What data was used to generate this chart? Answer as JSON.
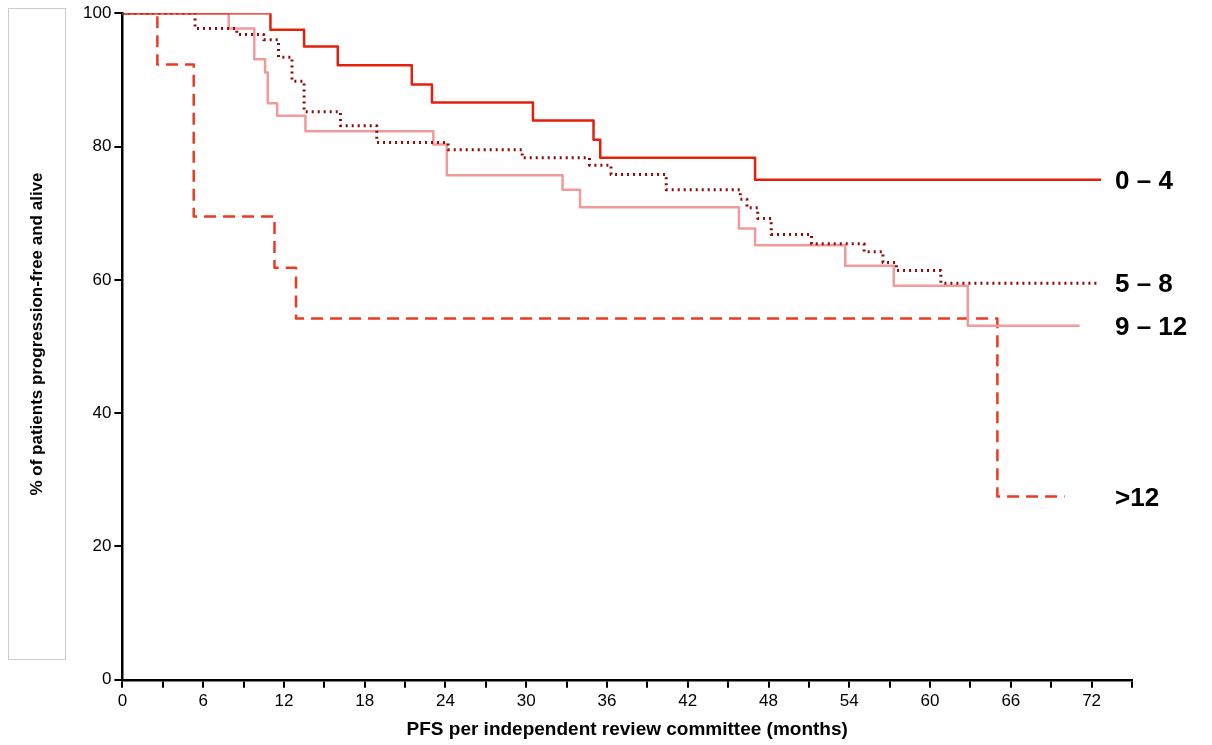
{
  "chart_data": {
    "type": "step",
    "xlabel": "PFS per independent review committee (months)",
    "ylabel": "% of patients progression-free and alive",
    "xlim": [
      0,
      75
    ],
    "xticks": [
      0,
      {
        "value": 3,
        "label": null
      },
      6,
      {
        "value": 9,
        "label": null
      },
      12,
      {
        "value": 15,
        "label": null
      },
      18,
      {
        "value": 21,
        "label": null
      },
      24,
      {
        "value": 27,
        "label": null
      },
      30,
      {
        "value": 33,
        "label": null
      },
      36,
      {
        "value": 39,
        "label": null
      },
      42,
      {
        "value": 45,
        "label": null
      },
      48,
      {
        "value": 51,
        "label": null
      },
      54,
      {
        "value": 57,
        "label": null
      },
      60,
      {
        "value": 63,
        "label": null
      },
      66,
      {
        "value": 69,
        "label": null
      },
      72,
      {
        "value": 75,
        "label": null
      }
    ],
    "ylim": [
      0,
      100
    ],
    "yticks": [
      0,
      20,
      40,
      60,
      80,
      100
    ],
    "grid": false,
    "legend": false,
    "marker": "none",
    "series": [
      {
        "name": "0 – 4",
        "color": "#e3200c",
        "line_style": "solid",
        "x": [
          0,
          11,
          13.5,
          16,
          21.5,
          23,
          30.5,
          35,
          35.5,
          47,
          72.7
        ],
        "values": [
          100,
          97.5,
          95,
          92.2,
          89.3,
          86.6,
          83.9,
          81,
          78.3,
          75,
          75
        ]
      },
      {
        "name": "5 – 8",
        "color": "#8b0a0a",
        "line_style": "dotted",
        "x": [
          0,
          5.4,
          8.5,
          10.5,
          11.6,
          12.6,
          13.5,
          16.2,
          18.9,
          24.2,
          29.7,
          34.7,
          36.3,
          40.4,
          45.9,
          46.4,
          47.2,
          48.2,
          51.2,
          55.1,
          56.5,
          57.5,
          60.8,
          72.6
        ],
        "values": [
          100,
          97.7,
          96.8,
          96,
          93.4,
          89.8,
          85.2,
          83.1,
          80.6,
          79.5,
          78.3,
          77.2,
          75.8,
          73.5,
          72.1,
          70.8,
          69.2,
          66.8,
          65.4,
          64.2,
          62.6,
          61.4,
          59.5,
          59.5
        ]
      },
      {
        "name": "9 – 12",
        "color": "#f29a9a",
        "line_style": "solid",
        "x": [
          0,
          7.9,
          9.8,
          10.6,
          10.8,
          11.5,
          13.6,
          23.1,
          24.1,
          32.7,
          34,
          45.8,
          47,
          53.7,
          57.3,
          62.8,
          71.1
        ],
        "values": [
          100,
          97.7,
          93.1,
          91.1,
          86.5,
          84.6,
          82.3,
          80.3,
          75.7,
          73.5,
          70.9,
          67.7,
          65.2,
          62.1,
          59.1,
          53.1,
          53.1
        ]
      },
      {
        "name": ">12",
        "color": "#ea3b22",
        "line_style": "dashed",
        "x": [
          0,
          2.6,
          5.3,
          11.3,
          12.9,
          65,
          70
        ],
        "values": [
          100,
          92.3,
          69.5,
          61.8,
          54.2,
          27.5,
          27.5
        ]
      }
    ]
  }
}
